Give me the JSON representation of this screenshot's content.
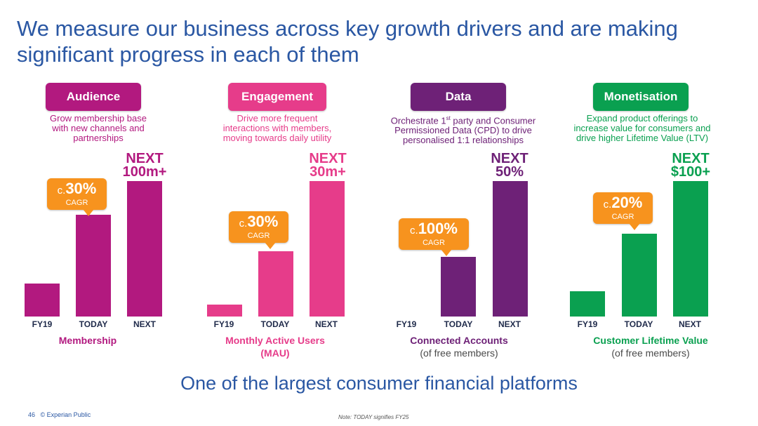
{
  "title": "We measure our business across key growth drivers and are making significant progress in each of them",
  "tagline": "One of the largest consumer financial platforms",
  "footer": {
    "page": "46",
    "classification": "© Experian Public",
    "note": "Note: TODAY signifies FY25"
  },
  "colors": {
    "audience": "#b2197f",
    "engagement": "#e63c8a",
    "data": "#6e2177",
    "monetisation": "#0aa050",
    "callout": "#f7931e",
    "title": "#2a57a3"
  },
  "panels": [
    {
      "name": "Audience",
      "desc": "Grow membership base\nwith new channels and\npartnerships",
      "next_label": "NEXT\n100m+",
      "callout_prefix": "c.",
      "callout_value": "30%",
      "callout_sub": "CAGR",
      "metric": "Membership",
      "metric_line2": "",
      "metric_sub": ""
    },
    {
      "name": "Engagement",
      "desc": "Drive more frequent\ninteractions with members,\nmoving towards daily utility",
      "next_label": "NEXT\n30m+",
      "callout_prefix": "c.",
      "callout_value": "30%",
      "callout_sub": "CAGR",
      "metric": "Monthly Active Users",
      "metric_line2": "(MAU)",
      "metric_sub": ""
    },
    {
      "name": "Data",
      "desc_part1": "Orchestrate 1",
      "desc_sup": "st",
      "desc_part2": " party and Consumer\nPermissioned Data (CPD) to drive\npersonalised 1:1 relationships",
      "next_label": "NEXT\n50%",
      "callout_prefix": "c.",
      "callout_value": "100%",
      "callout_sub": "CAGR",
      "metric": "Connected Accounts",
      "metric_line2": "",
      "metric_sub": "(of free members)"
    },
    {
      "name": "Monetisation",
      "desc": "Expand product offerings to\nincrease value for consumers and\ndrive higher Lifetime Value (LTV)",
      "next_label": "NEXT\n$100+",
      "callout_prefix": "c.",
      "callout_value": "20%",
      "callout_sub": "CAGR",
      "metric": "Customer Lifetime Value",
      "metric_line2": "",
      "metric_sub": "(of free members)"
    }
  ],
  "chart_data": [
    {
      "type": "bar",
      "categories": [
        "FY19",
        "TODAY",
        "NEXT"
      ],
      "values": [
        0.245,
        0.75,
        1.0
      ]
    },
    {
      "type": "bar",
      "categories": [
        "FY19",
        "TODAY",
        "NEXT"
      ],
      "values": [
        0.09,
        0.48,
        1.0
      ]
    },
    {
      "type": "bar",
      "categories": [
        "FY19",
        "TODAY",
        "NEXT"
      ],
      "values": [
        0.0,
        0.44,
        1.0
      ]
    },
    {
      "type": "bar",
      "categories": [
        "FY19",
        "TODAY",
        "NEXT"
      ],
      "values": [
        0.185,
        0.61,
        1.0
      ]
    }
  ]
}
